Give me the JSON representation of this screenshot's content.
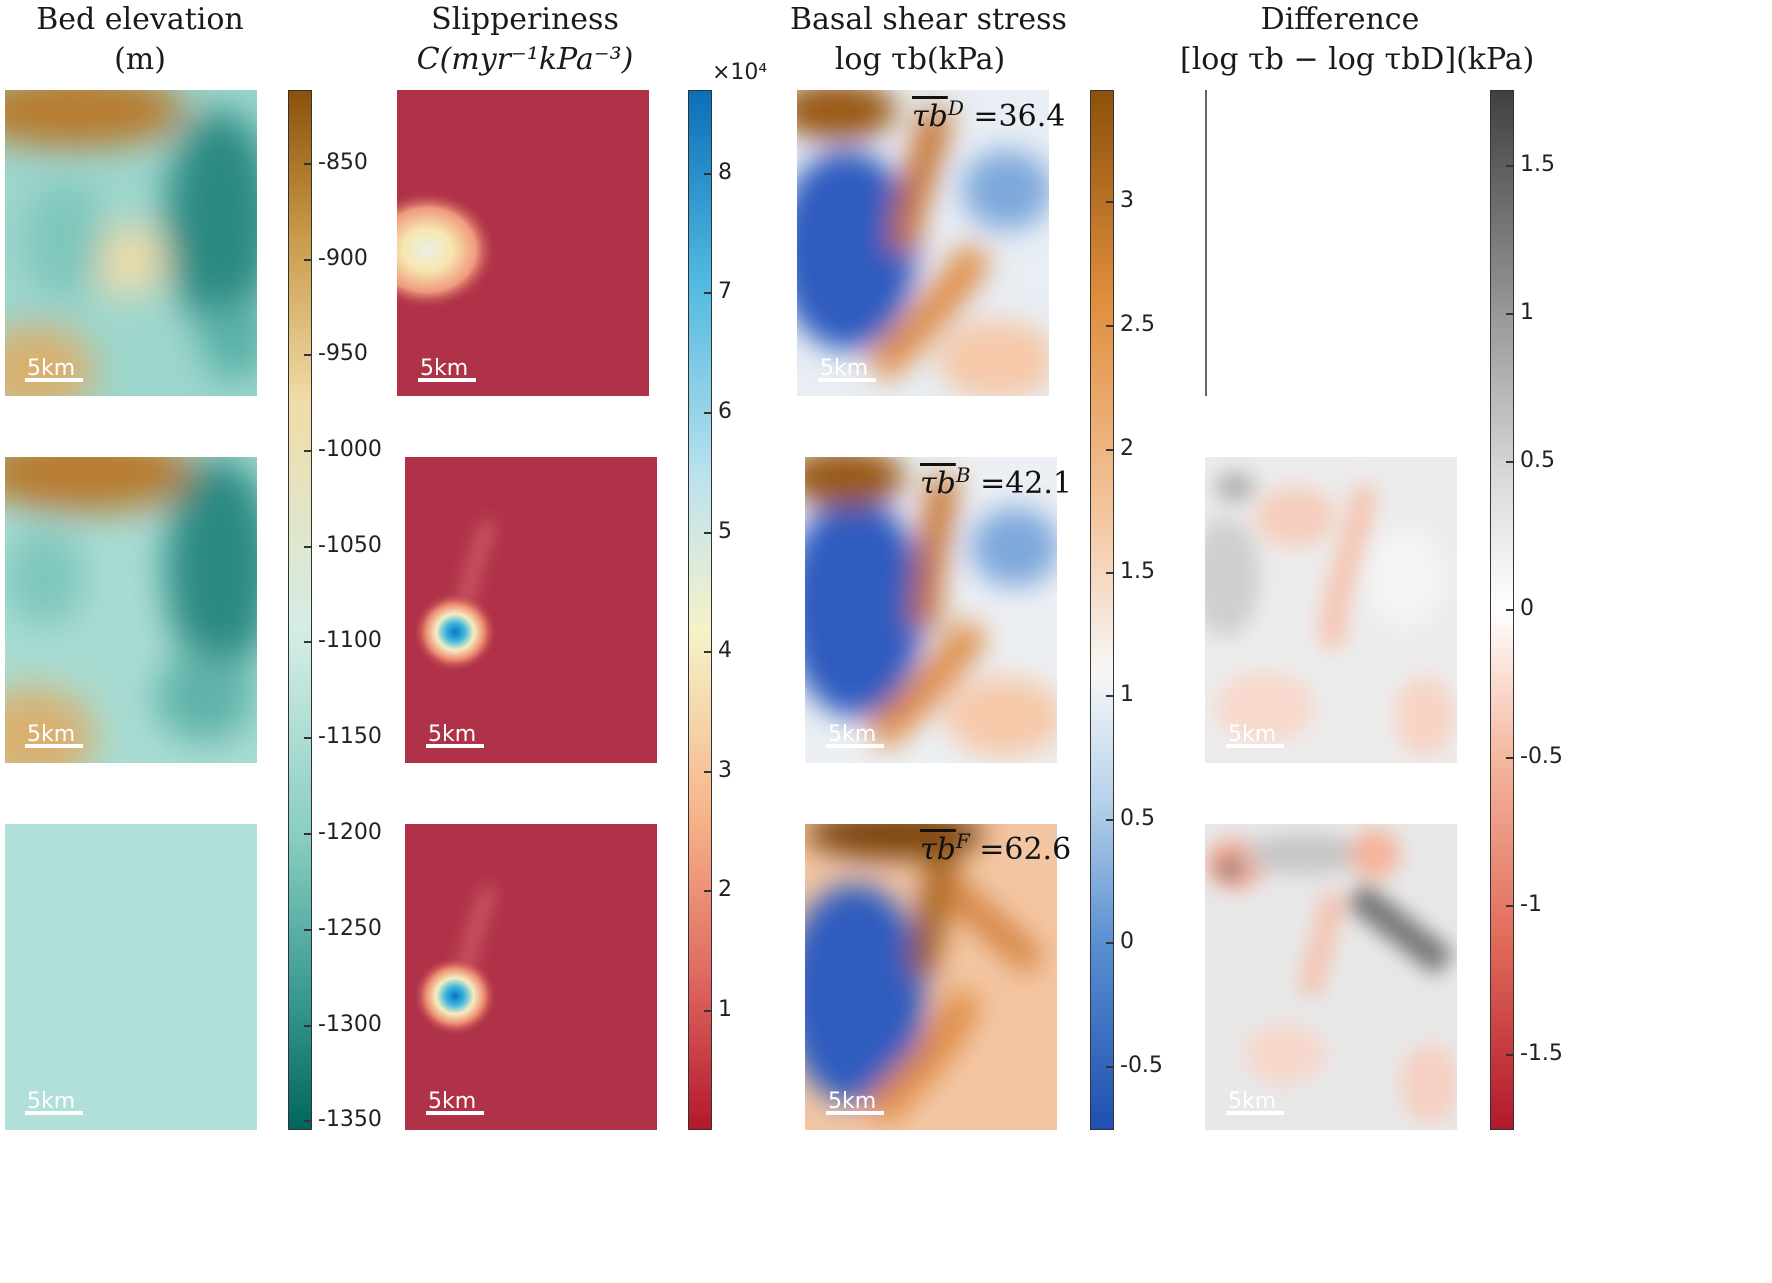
{
  "columns": [
    {
      "title_line1": "Bed elevation",
      "title_line2": "(m)"
    },
    {
      "title_line1": "Slipperiness",
      "title_line2": "C(myr⁻¹kPa⁻³)"
    },
    {
      "title_line1": "Basal shear stress",
      "title_line2": "log τb(kPa)"
    },
    {
      "title_line1": "Difference",
      "title_line2": "[log τb − log τbD](kPa)"
    }
  ],
  "scale_bar_label": "5km",
  "colorbars": {
    "bed": {
      "ticks": [
        "-850",
        "-900",
        "-950",
        "-1000",
        "-1050",
        "-1100",
        "-1150",
        "-1200",
        "-1250",
        "-1300",
        "-1350"
      ],
      "colors": [
        "#8c510a",
        "#c99a4a",
        "#f0dca8",
        "#d4ede6",
        "#88cdc1",
        "#35978f",
        "#01665e"
      ]
    },
    "slip": {
      "exponent": "×10⁴",
      "ticks": [
        "8",
        "7",
        "6",
        "5",
        "4",
        "3",
        "2",
        "1"
      ],
      "colors": [
        "#0a6fb8",
        "#4fb8e0",
        "#bfe3ee",
        "#f6f2c8",
        "#f6b48a",
        "#e06a62",
        "#b2182b"
      ]
    },
    "tau": {
      "ticks": [
        "3",
        "2.5",
        "2",
        "1.5",
        "1",
        "0.5",
        "0",
        "-0.5"
      ],
      "colors": [
        "#8c510a",
        "#e08d3c",
        "#f5c9a4",
        "#f7f7f7",
        "#b9d3ec",
        "#5a8fd1",
        "#1f4fb0"
      ]
    },
    "diff": {
      "ticks": [
        "1.5",
        "1",
        "0.5",
        "0",
        "-0.5",
        "-1",
        "-1.5"
      ],
      "colors": [
        "#404040",
        "#9a9a9a",
        "#dcdcdc",
        "#ffffff",
        "#f5b8a0",
        "#e06a5a",
        "#b2182b"
      ]
    }
  },
  "annotations": [
    {
      "symbol": "τb",
      "superscript": "D",
      "value": "=36.4"
    },
    {
      "symbol": "τb",
      "superscript": "B",
      "value": "=42.1"
    },
    {
      "symbol": "τb",
      "superscript": "F",
      "value": "=62.6"
    }
  ]
}
